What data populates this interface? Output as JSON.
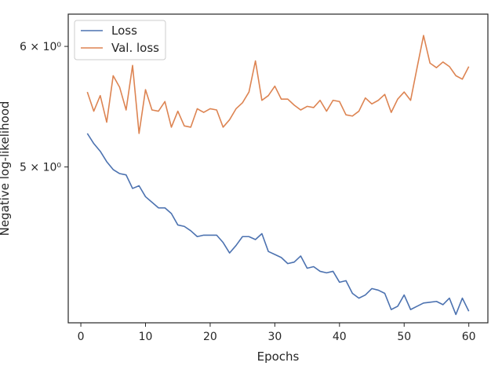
{
  "chart_data": {
    "type": "line",
    "title": "",
    "xlabel": "Epochs",
    "ylabel": "Negative log-likelihood",
    "yscale": "log",
    "xlim": [
      -1.95,
      62.95
    ],
    "ylim": [
      3.95,
      6.3
    ],
    "xticks": [
      0,
      10,
      20,
      30,
      40,
      50,
      60
    ],
    "yticks": [
      {
        "value": 5,
        "label": "5 × 10⁰"
      },
      {
        "value": 6,
        "label": "6 × 10⁰"
      }
    ],
    "grid": false,
    "legend_position": "top-left",
    "x": [
      1,
      2,
      3,
      4,
      5,
      6,
      7,
      8,
      9,
      10,
      11,
      12,
      13,
      14,
      15,
      16,
      17,
      18,
      19,
      20,
      21,
      22,
      23,
      24,
      25,
      26,
      27,
      28,
      29,
      30,
      31,
      32,
      33,
      34,
      35,
      36,
      37,
      38,
      39,
      40,
      41,
      42,
      43,
      44,
      45,
      46,
      47,
      48,
      49,
      50,
      51,
      52,
      53,
      54,
      55,
      56,
      57,
      58,
      59,
      60
    ],
    "series": [
      {
        "name": "Loss",
        "color": "#4c72b0",
        "values": [
          5.26,
          5.18,
          5.12,
          5.04,
          4.98,
          4.95,
          4.94,
          4.84,
          4.86,
          4.78,
          4.74,
          4.7,
          4.7,
          4.66,
          4.58,
          4.57,
          4.54,
          4.5,
          4.51,
          4.51,
          4.51,
          4.46,
          4.39,
          4.44,
          4.5,
          4.5,
          4.48,
          4.52,
          4.4,
          4.38,
          4.36,
          4.32,
          4.33,
          4.37,
          4.29,
          4.3,
          4.27,
          4.26,
          4.27,
          4.2,
          4.21,
          4.13,
          4.1,
          4.12,
          4.16,
          4.15,
          4.13,
          4.03,
          4.05,
          4.12,
          4.03,
          4.05,
          4.07,
          4.075,
          4.08,
          4.06,
          4.1,
          4.0,
          4.1,
          4.02
        ]
      },
      {
        "name": "Val. loss",
        "color": "#dd8452",
        "values": [
          5.6,
          5.44,
          5.57,
          5.35,
          5.74,
          5.64,
          5.45,
          5.83,
          5.26,
          5.62,
          5.45,
          5.44,
          5.52,
          5.31,
          5.44,
          5.32,
          5.31,
          5.46,
          5.43,
          5.46,
          5.45,
          5.31,
          5.37,
          5.46,
          5.51,
          5.6,
          5.87,
          5.53,
          5.57,
          5.65,
          5.54,
          5.54,
          5.49,
          5.45,
          5.48,
          5.47,
          5.53,
          5.44,
          5.53,
          5.52,
          5.41,
          5.4,
          5.44,
          5.55,
          5.5,
          5.53,
          5.58,
          5.43,
          5.54,
          5.6,
          5.53,
          5.81,
          6.1,
          5.85,
          5.81,
          5.86,
          5.82,
          5.74,
          5.71,
          5.82
        ]
      }
    ]
  }
}
